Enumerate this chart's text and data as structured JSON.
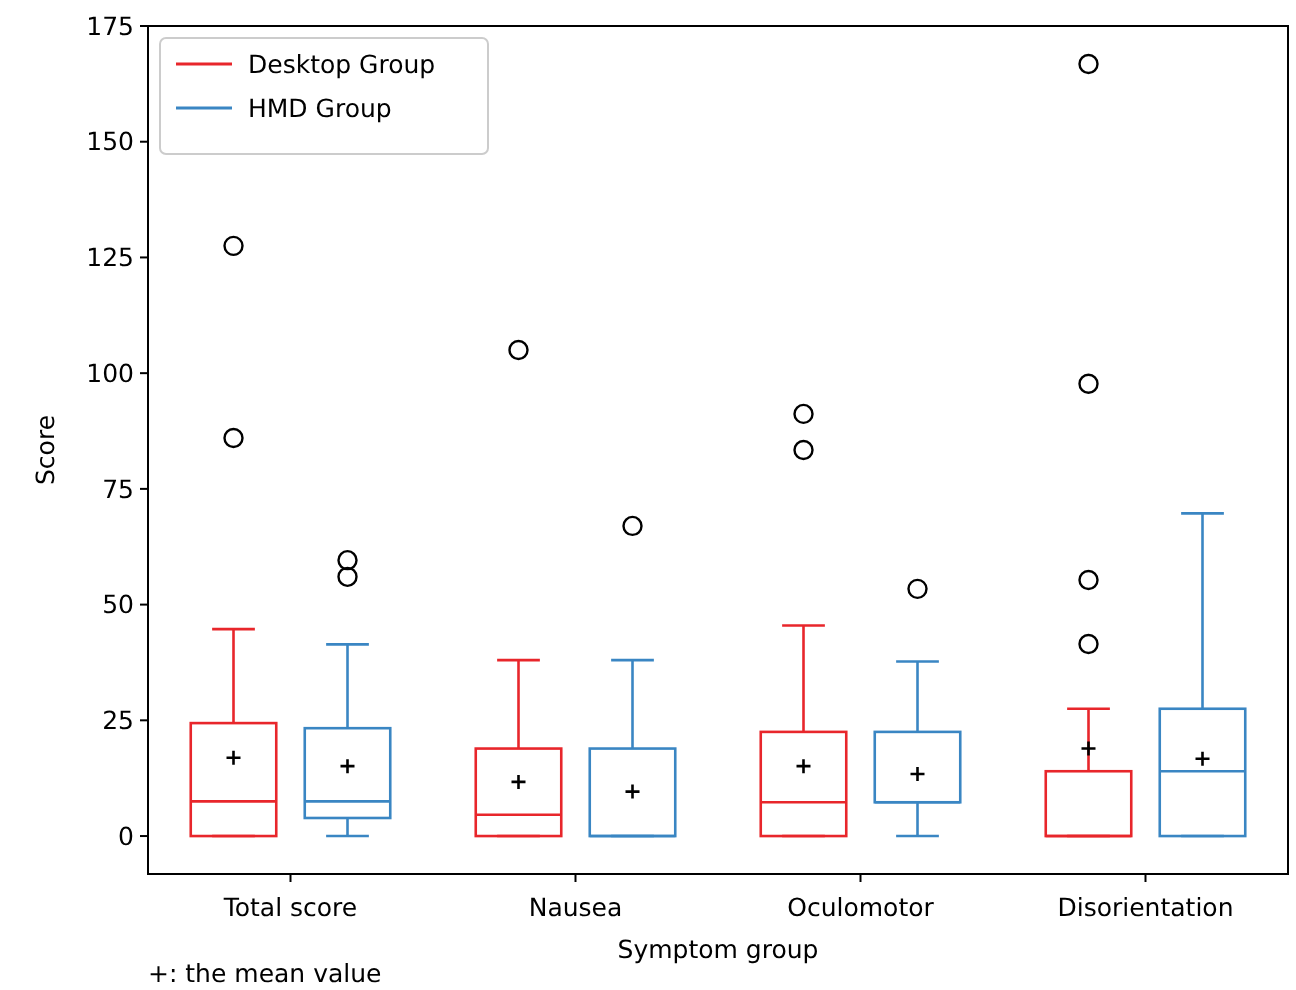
{
  "chart_data": {
    "type": "box",
    "xlabel": "Symptom group",
    "ylabel": "Score",
    "categories": [
      "Total score",
      "Nausea",
      "Oculomotor",
      "Disorientation"
    ],
    "ylim": [
      -8.2,
      175
    ],
    "yticks": [
      0,
      25,
      50,
      75,
      100,
      125,
      150,
      175
    ],
    "legend": "top left",
    "grid": false,
    "annotations": [
      "+: the mean value"
    ],
    "series": [
      {
        "name": "Desktop Group",
        "color": "#e8262b",
        "boxes": [
          {
            "low": 0,
            "q1": 0,
            "median": 7.5,
            "q3": 24.4,
            "high": 44.7,
            "mean": 16.9,
            "outliers": [
              127.5,
              86
            ]
          },
          {
            "low": 0,
            "q1": 0,
            "median": 4.6,
            "q3": 18.9,
            "high": 38,
            "mean": 11.7,
            "outliers": [
              105
            ]
          },
          {
            "low": 0,
            "q1": 0,
            "median": 7.3,
            "q3": 22.5,
            "high": 45.5,
            "mean": 15.1,
            "outliers": [
              91.2,
              83.4
            ]
          },
          {
            "low": 0,
            "q1": 0,
            "median": 0,
            "q3": 14,
            "high": 27.5,
            "mean": 18.9,
            "outliers": [
              166.8,
              97.7,
              55.3,
              41.5
            ]
          }
        ]
      },
      {
        "name": "HMD Group",
        "color": "#3a86c3",
        "boxes": [
          {
            "low": 0,
            "q1": 3.9,
            "median": 7.5,
            "q3": 23.3,
            "high": 41.4,
            "mean": 15.1,
            "outliers": [
              59.6,
              56
            ]
          },
          {
            "low": 0,
            "q1": 0,
            "median": 0,
            "q3": 18.9,
            "high": 38,
            "mean": 9.6,
            "outliers": [
              67
            ]
          },
          {
            "low": 0,
            "q1": 7.3,
            "median": 7.3,
            "q3": 22.5,
            "high": 37.7,
            "mean": 13.4,
            "outliers": [
              53.4
            ]
          },
          {
            "low": 0,
            "q1": 0,
            "median": 14,
            "q3": 27.5,
            "high": 69.7,
            "mean": 16.7
          }
        ]
      }
    ]
  }
}
